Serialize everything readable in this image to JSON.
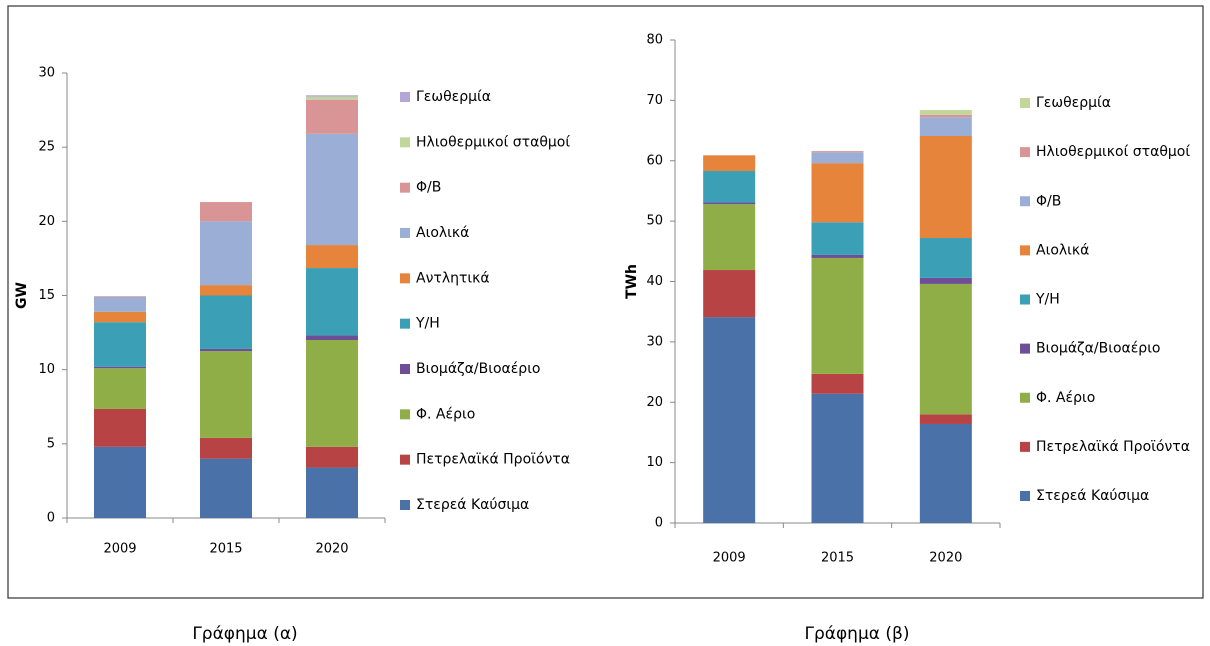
{
  "chart_data": [
    {
      "type": "bar",
      "stacked": true,
      "ylabel": "GW",
      "caption": "Γράφημα (α)",
      "categories": [
        "2009",
        "2015",
        "2020"
      ],
      "ylim": [
        0,
        30
      ],
      "yticks": [
        0,
        5,
        10,
        15,
        20,
        25,
        30
      ],
      "grid": false,
      "legend": "right",
      "series": [
        {
          "name": "Στερεά Καύσιμα",
          "color": "#4a72a8",
          "values": [
            4.8,
            4.0,
            3.4
          ]
        },
        {
          "name": "Πετρελαϊκά Προϊόντα",
          "color": "#b84345",
          "values": [
            2.55,
            1.4,
            1.4
          ]
        },
        {
          "name": "Φ. Αέριο",
          "color": "#8fae48",
          "values": [
            2.75,
            5.85,
            7.2
          ]
        },
        {
          "name": "Βιομάζα/Βιοαέριο",
          "color": "#6f4e98",
          "values": [
            0.1,
            0.15,
            0.3
          ]
        },
        {
          "name": "Υ/Η",
          "color": "#3b9fb5",
          "values": [
            3.0,
            3.6,
            4.55
          ]
        },
        {
          "name": "Αντλητικά",
          "color": "#e5843a",
          "values": [
            0.7,
            0.7,
            1.55
          ]
        },
        {
          "name": "Αιολικά",
          "color": "#9aaed6",
          "values": [
            1.0,
            4.3,
            7.5
          ]
        },
        {
          "name": "Φ/Β",
          "color": "#d99595",
          "values": [
            0.05,
            1.3,
            2.3
          ]
        },
        {
          "name": "Ηλιοθερμικοί σταθμοί",
          "color": "#c2d69b",
          "values": [
            0,
            0,
            0.2
          ]
        },
        {
          "name": "Γεωθερμία",
          "color": "#b4a7d6",
          "values": [
            0,
            0,
            0.1
          ]
        }
      ]
    },
    {
      "type": "bar",
      "stacked": true,
      "ylabel": "TWh",
      "caption": "Γράφημα (β)",
      "categories": [
        "2009",
        "2015",
        "2020"
      ],
      "ylim": [
        0,
        80
      ],
      "yticks": [
        0,
        10,
        20,
        30,
        40,
        50,
        60,
        70,
        80
      ],
      "grid": false,
      "legend": "right",
      "series": [
        {
          "name": "Στερεά Καύσιμα",
          "color": "#4a72a8",
          "values": [
            34.1,
            21.4,
            16.4
          ]
        },
        {
          "name": "Πετρελαϊκά Προϊόντα",
          "color": "#b84345",
          "values": [
            7.8,
            3.3,
            1.6
          ]
        },
        {
          "name": "Φ. Αέριο",
          "color": "#8fae48",
          "values": [
            10.9,
            19.2,
            21.6
          ]
        },
        {
          "name": "Βιομάζα/Βιοαέριο",
          "color": "#6f4e98",
          "values": [
            0.3,
            0.5,
            1.0
          ]
        },
        {
          "name": "Υ/Η",
          "color": "#3b9fb5",
          "values": [
            5.2,
            5.4,
            6.6
          ]
        },
        {
          "name": "Αιολικά",
          "color": "#e5843a",
          "values": [
            2.6,
            9.8,
            16.9
          ]
        },
        {
          "name": "Φ/Β",
          "color": "#9aaed6",
          "values": [
            0,
            1.8,
            3.1
          ]
        },
        {
          "name": "Ηλιοθερμικοί σταθμοί",
          "color": "#d99595",
          "values": [
            0,
            0.2,
            0.4
          ]
        },
        {
          "name": "Γεωθερμία",
          "color": "#c2d69b",
          "values": [
            0,
            0,
            0.8
          ]
        }
      ]
    }
  ]
}
